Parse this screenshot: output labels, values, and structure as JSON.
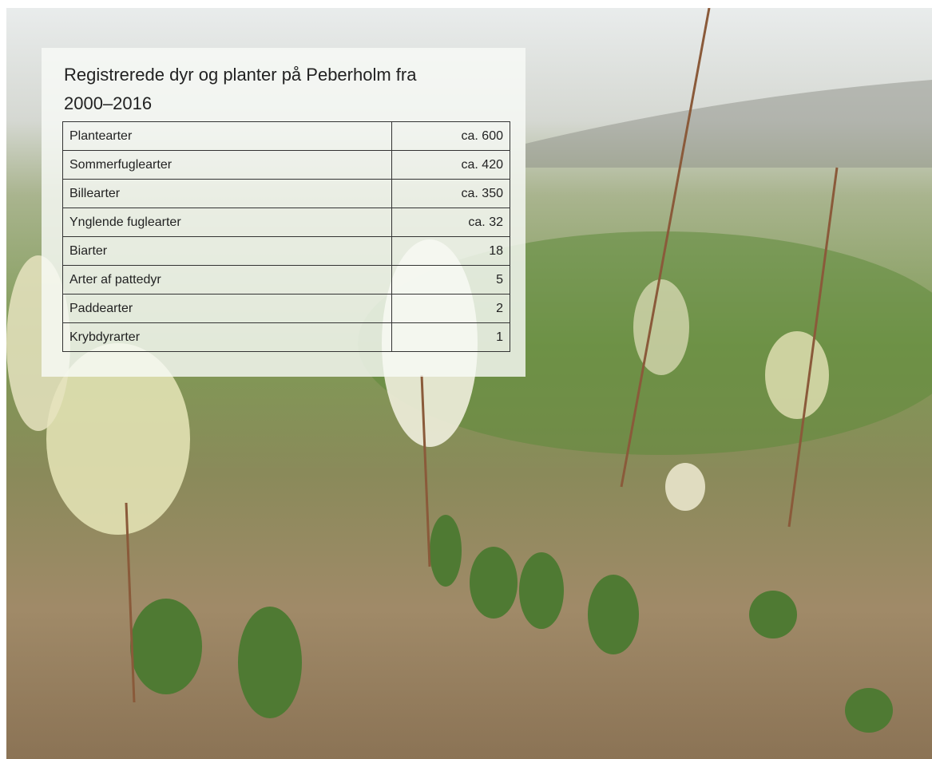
{
  "header": {
    "title": "Registrerede dyr og planter på Peberholm fra 2000–2016"
  },
  "table": {
    "rows": [
      [
        "Plantearter",
        "ca. 600"
      ],
      [
        "Sommerfuglearter",
        "ca. 420"
      ],
      [
        "Billearter",
        "ca. 350"
      ],
      [
        "Ynglende fuglearter",
        "ca. 32"
      ],
      [
        "Biarter",
        18
      ],
      [
        "Arter af pattedyr",
        5
      ],
      [
        "Paddearter",
        2
      ],
      [
        "Krybdyrarter",
        1
      ]
    ]
  }
}
